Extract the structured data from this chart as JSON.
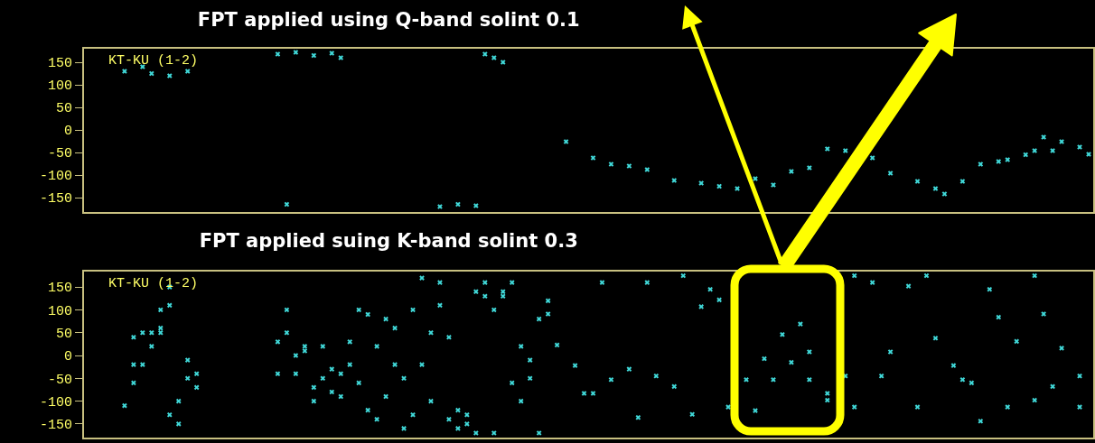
{
  "chart_data": [
    {
      "type": "scatter",
      "title": "FPT applied using Q-band solint 0.1",
      "annotations": [
        "KT-KU (1-2)"
      ],
      "categories": [
        null,
        null,
        null,
        null,
        null,
        null,
        null,
        null,
        null,
        null,
        null,
        null,
        null,
        null,
        null,
        null,
        null,
        null,
        null,
        null,
        null,
        null,
        null,
        null,
        null,
        null,
        null,
        null,
        null,
        null,
        null,
        null,
        null,
        null,
        null,
        null,
        null,
        null,
        null,
        null,
        null,
        null,
        null,
        null,
        null,
        null,
        null,
        null,
        null,
        null,
        null,
        null,
        null,
        null,
        null,
        null,
        null,
        null,
        null,
        null,
        null,
        null,
        null,
        null,
        null,
        null,
        null,
        null,
        null,
        null,
        null,
        null,
        null,
        null,
        null,
        null,
        null,
        null,
        null,
        null,
        null,
        null,
        null,
        null,
        null,
        null,
        null,
        null,
        null,
        null,
        null,
        null,
        null,
        null,
        null,
        null,
        null,
        null,
        null,
        null,
        null,
        null,
        null,
        null,
        null,
        null,
        null,
        null,
        null,
        null,
        null,
        null
      ],
      "series": [
        {
          "color": "#40d8d8",
          "values": [
            null,
            null,
            null,
            null,
            130,
            null,
            140,
            125,
            null,
            120,
            null,
            130,
            null,
            null,
            null,
            null,
            null,
            null,
            null,
            null,
            null,
            168,
            -165,
            172,
            null,
            165,
            null,
            170,
            160,
            null,
            null,
            null,
            null,
            null,
            null,
            null,
            null,
            null,
            null,
            -170,
            null,
            -165,
            null,
            -168,
            168,
            160,
            150,
            null,
            null,
            null,
            null,
            null,
            null,
            -26,
            null,
            null,
            -62,
            null,
            -76,
            null,
            -80,
            null,
            -88,
            null,
            null,
            -112,
            null,
            null,
            -118,
            null,
            -125,
            null,
            -130,
            null,
            -108,
            null,
            -122,
            null,
            -92,
            null,
            -84,
            null,
            -42,
            null,
            -46,
            null,
            null,
            -62,
            null,
            -96,
            null,
            null,
            -114,
            null,
            -130,
            -142,
            null,
            -114,
            null,
            -76,
            null,
            -70,
            -66,
            null,
            -55,
            -46,
            -16,
            -46,
            -26,
            null,
            -38,
            -54
          ]
        }
      ],
      "ylim": [
        -182,
        180
      ],
      "yticks": [
        -150,
        -100,
        -50,
        0,
        50,
        100,
        150
      ],
      "grid": false,
      "tick_labels": "y",
      "marker": "cross"
    },
    {
      "type": "scatter",
      "title": "FPT applied suing K-band solint 0.3",
      "annotations": [
        "KT-KU (1-2)"
      ],
      "categories": [
        null,
        null,
        null,
        null,
        null,
        null,
        null,
        null,
        null,
        null,
        null,
        null,
        null,
        null,
        null,
        null,
        null,
        null,
        null,
        null,
        null,
        null,
        null,
        null,
        null,
        null,
        null,
        null,
        null,
        null,
        null,
        null,
        null,
        null,
        null,
        null,
        null,
        null,
        null,
        null,
        null,
        null,
        null,
        null,
        null,
        null,
        null,
        null,
        null,
        null,
        null,
        null,
        null,
        null,
        null,
        null,
        null,
        null,
        null,
        null,
        null,
        null,
        null,
        null,
        null,
        null,
        null,
        null,
        null,
        null,
        null,
        null,
        null,
        null,
        null,
        null,
        null,
        null,
        null,
        null,
        null,
        null,
        null,
        null,
        null,
        null,
        null,
        null,
        null,
        null,
        null,
        null,
        null,
        null,
        null,
        null,
        null,
        null,
        null,
        null,
        null,
        null,
        null,
        null,
        null,
        null,
        null,
        null,
        null,
        null,
        null,
        null
      ],
      "series": [
        {
          "color": "#40d8d8",
          "values": [
            null,
            null,
            null,
            null,
            -110,
            -60,
            50,
            20,
            100,
            110,
            -150,
            -50,
            -40,
            null,
            null,
            null,
            null,
            null,
            null,
            null,
            null,
            -40,
            100,
            0,
            20,
            -70,
            -50,
            -30,
            -90,
            30,
            100,
            90,
            20,
            80,
            -20,
            -160,
            100,
            170,
            50,
            160,
            40,
            -120,
            -130,
            -170,
            160,
            -170,
            140,
            160,
            -100,
            -10,
            80,
            120,
            23,
            null,
            -22,
            -83,
            -83,
            160,
            -53,
            null,
            -30,
            -136,
            160,
            -45,
            null,
            -68,
            175,
            -129,
            107,
            145,
            122,
            -113,
            null,
            -53,
            -121,
            -7,
            -53,
            46,
            -15,
            69,
            8,
            null,
            -83,
            null,
            -45,
            175,
            null,
            160,
            -45,
            8,
            null,
            152,
            -113,
            175,
            38,
            null,
            -22,
            -53,
            -60,
            -144,
            145,
            84,
            -113,
            31,
            null,
            175,
            91,
            -68,
            16,
            null,
            -45,
            null
          ]
        },
        {
          "color": "#40d8d8",
          "values": [
            null,
            null,
            null,
            null,
            null,
            -20,
            -20,
            50,
            60,
            150,
            -100,
            -10,
            -70,
            null,
            null,
            null,
            null,
            null,
            null,
            null,
            null,
            30,
            50,
            -40,
            10,
            -100,
            20,
            -80,
            -40,
            -20,
            -60,
            -120,
            -140,
            -90,
            60,
            -50,
            -130,
            -20,
            -100,
            110,
            -140,
            -160,
            -150,
            140,
            130,
            100,
            130,
            -60,
            20,
            -50,
            -170,
            91,
            null,
            null,
            null,
            null,
            null,
            null,
            null,
            null,
            null,
            null,
            null,
            null,
            null,
            null,
            null,
            null,
            null,
            null,
            null,
            null,
            null,
            null,
            null,
            null,
            null,
            null,
            null,
            null,
            -53,
            null,
            -98,
            null,
            null,
            -113,
            null,
            null,
            null,
            null,
            null,
            null,
            null,
            null,
            null,
            null,
            null,
            null,
            null,
            null,
            null,
            null,
            null,
            null,
            null,
            -98,
            null,
            null,
            null,
            null,
            -113,
            null
          ]
        },
        {
          "color": "#40d8d8",
          "values": [
            null,
            null,
            null,
            null,
            null,
            40,
            null,
            null,
            50,
            -130,
            null,
            null,
            null,
            null,
            null,
            null,
            null,
            null,
            null,
            null,
            null,
            null,
            null,
            null,
            null,
            null,
            null,
            null,
            null,
            null,
            null,
            null,
            null,
            null,
            null,
            null,
            null,
            null,
            null,
            null,
            null,
            null,
            null,
            null,
            null,
            null,
            null,
            null,
            null,
            null,
            null,
            null,
            null,
            null,
            null,
            null,
            null,
            null,
            null,
            null,
            null,
            null,
            null,
            null,
            null,
            null,
            null,
            null,
            null,
            null,
            null,
            null,
            null,
            null,
            null,
            null,
            null,
            null,
            null,
            null,
            null,
            null,
            null,
            null,
            null,
            null,
            null,
            null,
            null,
            null,
            null,
            null,
            null,
            null,
            null,
            null,
            null,
            null,
            null,
            null,
            null,
            null,
            null,
            null,
            null,
            null,
            null,
            null,
            null,
            null,
            null,
            null
          ]
        }
      ],
      "ylim": [
        -180,
        184
      ],
      "yticks": [
        -150,
        -100,
        -50,
        0,
        50,
        100,
        150
      ],
      "grid": false,
      "tick_labels": "y",
      "marker": "cross"
    }
  ]
}
